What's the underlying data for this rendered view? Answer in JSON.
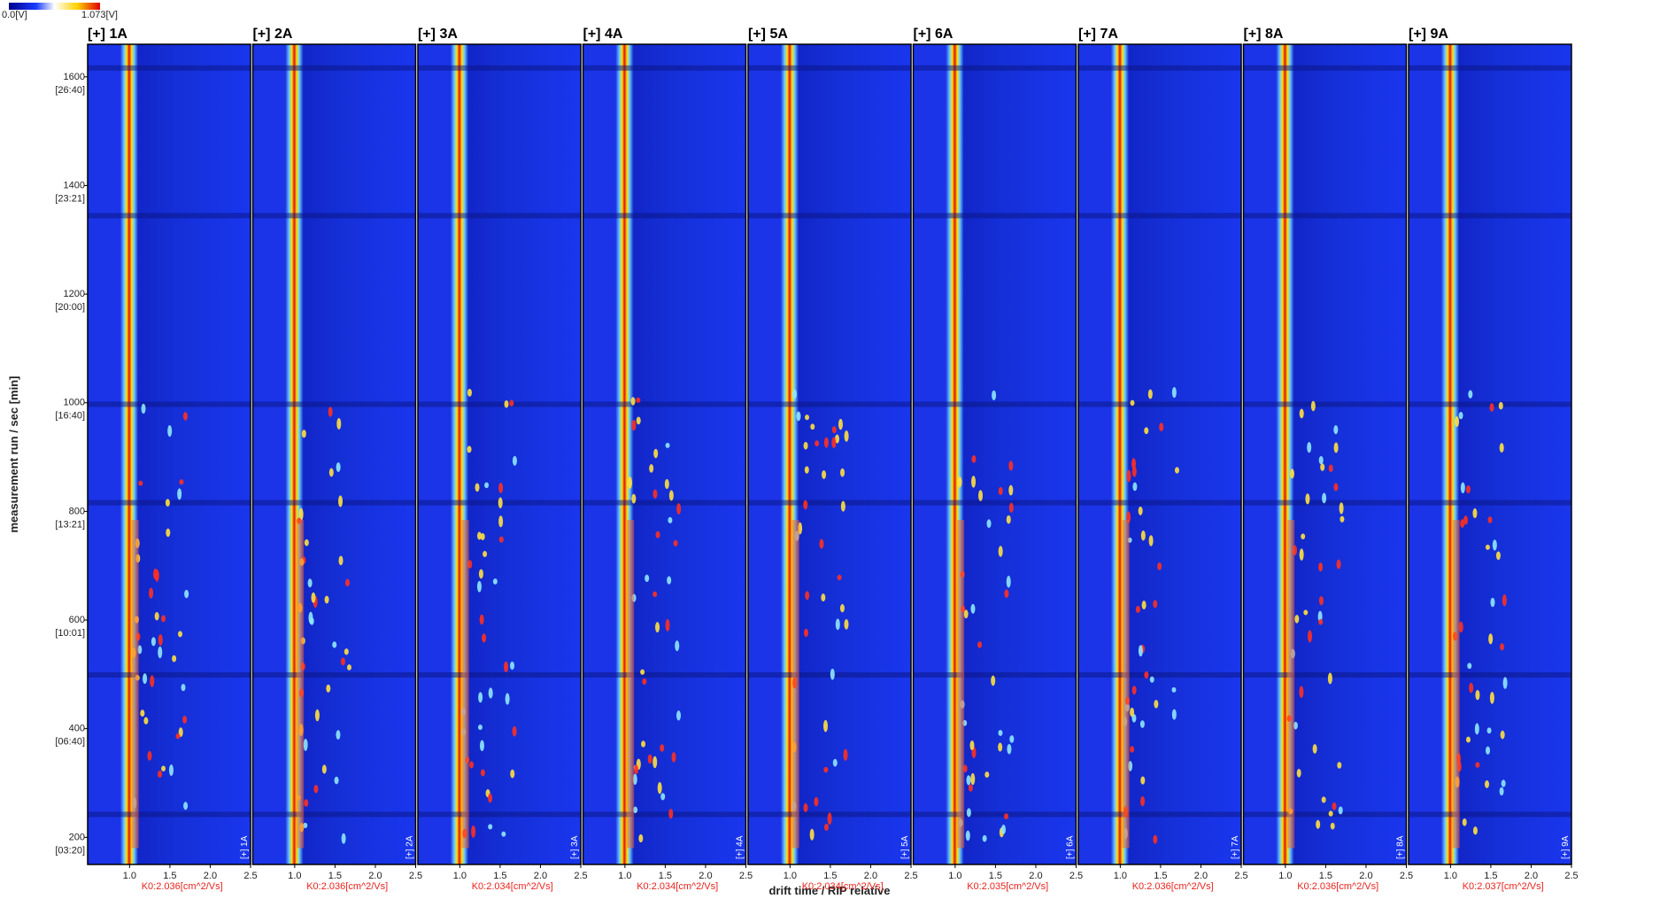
{
  "chart_data": {
    "type": "heatmap",
    "colorbar_min_label": "0.0[V]",
    "colorbar_max_label": "1.073[V]",
    "y_label": "measurement run / sec [min]",
    "x_label": "drift time / RIP relative",
    "ylim": [
      150,
      1660
    ],
    "yticks": [
      200,
      400,
      600,
      800,
      1000,
      1200,
      1400,
      1600
    ],
    "ytick_times": [
      "[03:20]",
      "[06:40]",
      "[10:01]",
      "[13:21]",
      "[16:40]",
      "[20:00]",
      "[23:21]",
      "[26:40]"
    ],
    "xlim": [
      0.48,
      2.5
    ],
    "xticks": [
      {
        "value": 1,
        "label": "1.0"
      },
      1.5,
      {
        "value": 2,
        "label": "2.0"
      },
      2.5
    ],
    "panels": [
      {
        "title": "[+] 1A",
        "k0_label": "K0:2.036[cm^2/Vs]"
      },
      {
        "title": "[+] 2A",
        "k0_label": "K0:2.036[cm^2/Vs]"
      },
      {
        "title": "[+] 3A",
        "k0_label": "K0:2.034[cm^2/Vs]"
      },
      {
        "title": "[+] 4A",
        "k0_label": "K0:2.034[cm^2/Vs]"
      },
      {
        "title": "[+] 5A",
        "k0_label": "K0:2.034[cm^2/Vs]"
      },
      {
        "title": "[+] 6A",
        "k0_label": "K0:2.035[cm^2/Vs]"
      },
      {
        "title": "[+] 7A",
        "k0_label": "K0:2.036[cm^2/Vs]"
      },
      {
        "title": "[+] 8A",
        "k0_label": "K0:2.036[cm^2/Vs]"
      },
      {
        "title": "[+] 9A",
        "k0_label": "K0:2.037[cm^2/Vs]"
      }
    ]
  }
}
